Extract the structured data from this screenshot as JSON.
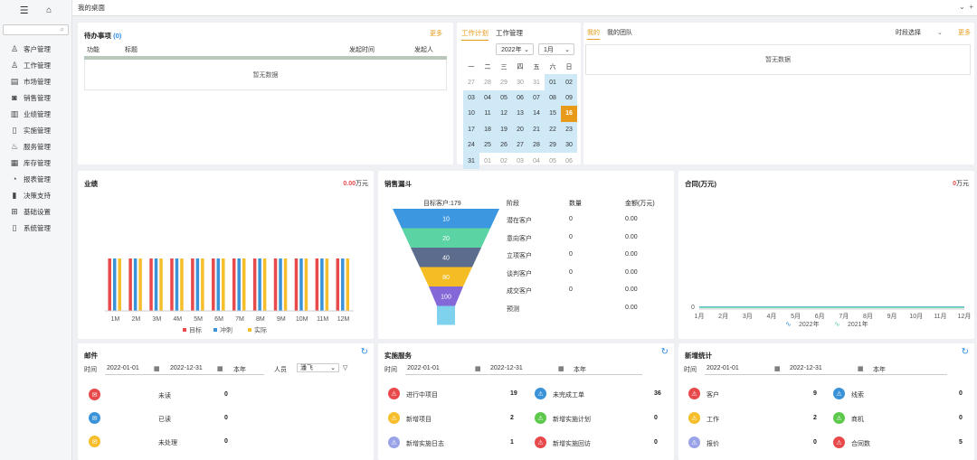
{
  "sidebar": {
    "items": [
      {
        "label": "客户管理",
        "icon": "person-icon"
      },
      {
        "label": "工作管理",
        "icon": "person-outline-icon"
      },
      {
        "label": "市场管理",
        "icon": "document-icon"
      },
      {
        "label": "销售管理",
        "icon": "money-icon"
      },
      {
        "label": "业绩管理",
        "icon": "ledger-icon"
      },
      {
        "label": "实施管理",
        "icon": "file-icon"
      },
      {
        "label": "服务管理",
        "icon": "headset-icon"
      },
      {
        "label": "库存管理",
        "icon": "inventory-icon"
      },
      {
        "label": "报表管理",
        "icon": "pie-icon"
      },
      {
        "label": "决策支持",
        "icon": "bar-chart-icon"
      },
      {
        "label": "基础设置",
        "icon": "grid-icon"
      },
      {
        "label": "系统管理",
        "icon": "system-icon"
      }
    ]
  },
  "topbar": {
    "title": "我的桌面"
  },
  "todo": {
    "title": "待办事项",
    "count": "(0)",
    "more": "更多",
    "cols": [
      "功能",
      "标题",
      "发起时间",
      "发起人"
    ],
    "empty": "暂无数据"
  },
  "calendar": {
    "tabs": [
      "工作计划",
      "工作管理"
    ],
    "year": "2022年",
    "month": "1月",
    "weekdays": [
      "一",
      "二",
      "三",
      "四",
      "五",
      "六",
      "日"
    ],
    "rows": [
      [
        "27",
        "28",
        "29",
        "30",
        "31",
        "01",
        "02"
      ],
      [
        "03",
        "04",
        "05",
        "06",
        "07",
        "08",
        "09"
      ],
      [
        "10",
        "11",
        "12",
        "13",
        "14",
        "15",
        "16"
      ],
      [
        "17",
        "18",
        "19",
        "20",
        "21",
        "22",
        "23"
      ],
      [
        "24",
        "25",
        "26",
        "27",
        "28",
        "29",
        "30"
      ],
      [
        "31",
        "01",
        "02",
        "03",
        "04",
        "05",
        "06"
      ]
    ]
  },
  "team": {
    "tabs": [
      "我的",
      "我的团队"
    ],
    "period": "时段选择",
    "more": "更多",
    "empty": "暂无数据"
  },
  "performance": {
    "title": "业绩",
    "value": "0.00",
    "unit": "万元",
    "legend": [
      "目标",
      "冲刺",
      "实际"
    ],
    "colors": [
      "#e8494b",
      "#3a93d8",
      "#f5be2a"
    ]
  },
  "funnel": {
    "title": "销售漏斗",
    "target_label": "目标客户:179",
    "cols": [
      "阶段",
      "数量",
      "金额(万元)"
    ],
    "stages": [
      {
        "name": "潜在客户",
        "count": "0",
        "amount": "0.00",
        "label": "10",
        "color": "#3d97e0"
      },
      {
        "name": "意向客户",
        "count": "0",
        "amount": "0.00",
        "label": "20",
        "color": "#5bd3a3"
      },
      {
        "name": "立项客户",
        "count": "0",
        "amount": "0.00",
        "label": "40",
        "color": "#5c6c8c"
      },
      {
        "name": "谈判客户",
        "count": "0",
        "amount": "0.00",
        "label": "80",
        "color": "#f4bd24"
      },
      {
        "name": "成交客户",
        "count": "0",
        "amount": "0.00",
        "label": "100",
        "color": "#8468d8"
      },
      {
        "name": "预测",
        "count": "",
        "amount": "0.00",
        "label": "",
        "color": "#7fd2ee"
      }
    ]
  },
  "contract": {
    "title": "合同(万元)",
    "value": "0",
    "unit": "万元",
    "series": [
      "2022年",
      "2021年"
    ],
    "colors": [
      "#3a93d8",
      "#5bd3a3"
    ]
  },
  "mail": {
    "title": "邮件",
    "time_label": "时间",
    "start": "2022-01-01",
    "end": "2022-12-31",
    "range": "本年",
    "person_label": "人员",
    "person": "潘飞",
    "rows": [
      {
        "label": "未读",
        "value": "0",
        "color": "#e8494b",
        "icon": "mail-icon"
      },
      {
        "label": "已读",
        "value": "0",
        "color": "#3a93d8",
        "icon": "mail-open-icon"
      },
      {
        "label": "未处理",
        "value": "0",
        "color": "#f5be2a",
        "icon": "mail-pending-icon"
      }
    ]
  },
  "impl": {
    "title": "实施服务",
    "time_label": "时间",
    "start": "2022-01-01",
    "end": "2022-12-31",
    "range": "本年",
    "left": [
      {
        "label": "进行中项目",
        "value": "19",
        "color": "#e8494b"
      },
      {
        "label": "新增项目",
        "value": "2",
        "color": "#f5be2a"
      },
      {
        "label": "新增实施日志",
        "value": "1",
        "color": "#9aa3e8"
      }
    ],
    "right": [
      {
        "label": "未完成工单",
        "value": "36",
        "color": "#3a93d8"
      },
      {
        "label": "新增实施计划",
        "value": "0",
        "color": "#5cc94b"
      },
      {
        "label": "新增实施回访",
        "value": "0",
        "color": "#e8494b"
      }
    ]
  },
  "newstats": {
    "title": "新增统计",
    "time_label": "时间",
    "start": "2022-01-01",
    "end": "2022-12-31",
    "range": "本年",
    "left": [
      {
        "label": "客户",
        "value": "9",
        "color": "#e8494b"
      },
      {
        "label": "工作",
        "value": "2",
        "color": "#f5be2a"
      },
      {
        "label": "报价",
        "value": "0",
        "color": "#9aa3e8"
      }
    ],
    "right": [
      {
        "label": "线索",
        "value": "0",
        "color": "#3a93d8"
      },
      {
        "label": "商机",
        "value": "0",
        "color": "#5cc94b"
      },
      {
        "label": "合同数",
        "value": "5",
        "color": "#e8494b"
      }
    ]
  }
}
